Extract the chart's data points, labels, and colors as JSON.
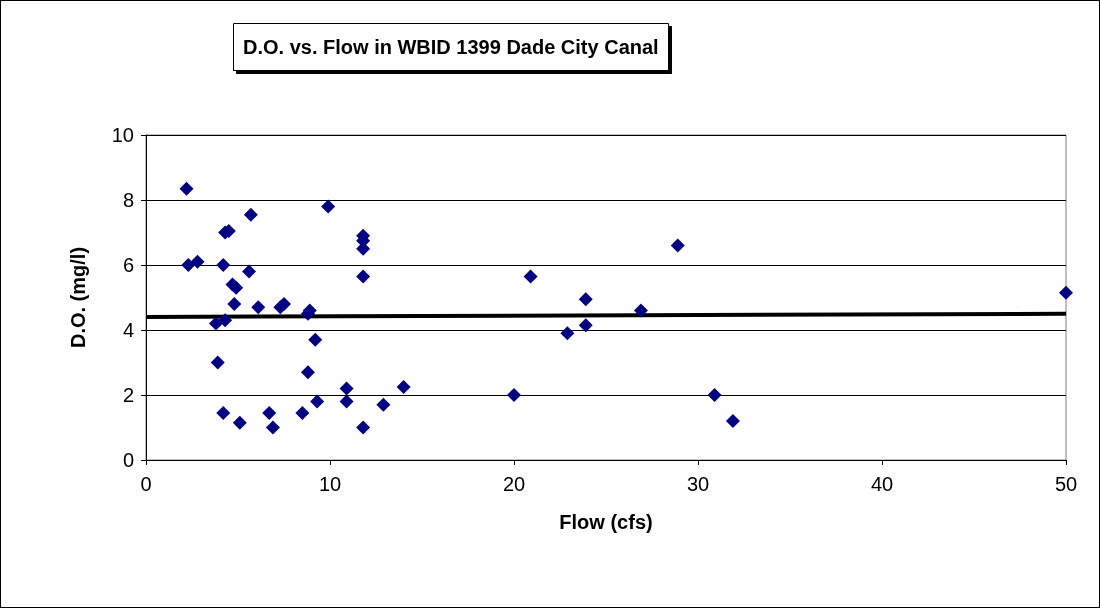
{
  "chart_data": {
    "type": "scatter",
    "title": "D.O. vs. Flow in WBID 1399 Dade City Canal",
    "xlabel": "Flow (cfs)",
    "ylabel": "D.O. (mg/l)",
    "xlim": [
      0,
      50
    ],
    "xticks": [
      0,
      10,
      20,
      30,
      40,
      50
    ],
    "ylim": [
      0,
      10
    ],
    "yticks": [
      0,
      2,
      4,
      6,
      8,
      10
    ],
    "grid": "y",
    "marker": "diamond",
    "series": [
      {
        "color": "#000080",
        "x": [
          2.2,
          2.3,
          2.8,
          4.3,
          4.5,
          5.7,
          9.9,
          11.8,
          11.8,
          11.8,
          11.8,
          4.2,
          5.6,
          4.7,
          4.9,
          4.8,
          6.1,
          7.3,
          7.5,
          8.8,
          8.9,
          3.8,
          4.3,
          9.2,
          3.9,
          8.8,
          9.3,
          10.9,
          10.9,
          14,
          12.9,
          11.8,
          4.2,
          5.1,
          6.7,
          6.9,
          8.5,
          20.9,
          23.9,
          23.9,
          22.9,
          26.9,
          20,
          30.9,
          31.9,
          28.9,
          50
        ],
        "values": [
          8.35,
          6,
          6.1,
          7,
          7.05,
          7.55,
          7.8,
          6.9,
          6.75,
          6.5,
          5.65,
          6,
          5.8,
          5.4,
          5.3,
          4.8,
          4.7,
          4.7,
          4.8,
          4.5,
          4.6,
          4.2,
          4.3,
          3.7,
          3,
          2.7,
          1.8,
          2.2,
          1.8,
          2.25,
          1.7,
          1,
          1.45,
          1.15,
          1.45,
          1,
          1.45,
          5.65,
          4.95,
          4.15,
          3.9,
          4.6,
          2,
          2,
          1.2,
          6.6,
          5.15
        ]
      },
      {
        "type": "line",
        "color": "#000000",
        "marker": "none",
        "x": [
          0,
          50
        ],
        "values": [
          4.4,
          4.5
        ]
      }
    ]
  }
}
